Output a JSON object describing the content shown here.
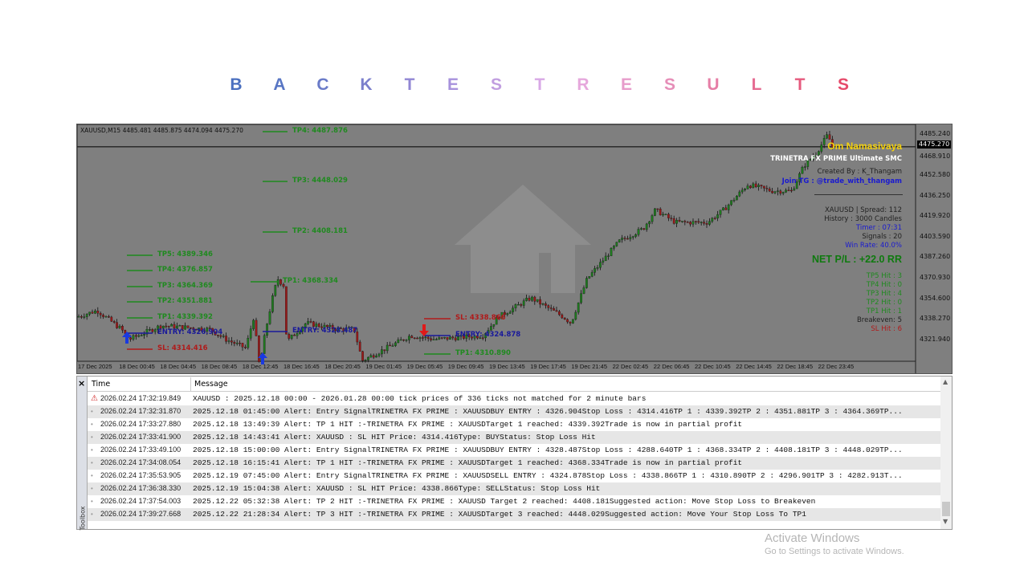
{
  "title_letters": [
    "B",
    "A",
    "C",
    "K",
    "T",
    "E",
    "S",
    "T",
    "R",
    "E",
    "S",
    "U",
    "L",
    "T",
    "S"
  ],
  "title_colors": [
    "#4a6fbf",
    "#5876c4",
    "#6a7bc8",
    "#7b7fcc",
    "#9187d4",
    "#a792dc",
    "#c19ee0",
    "#d8a8e6",
    "#e6a8dc",
    "#e79ccb",
    "#e68eb8",
    "#e67ea6",
    "#e66c92",
    "#e65a7e",
    "#e64a6a"
  ],
  "chart": {
    "header": "XAUUSD,M15  4485.481 4485.875 4474.094 4475.270",
    "current_price": "4475.270",
    "price_ticks": [
      "4485.240",
      "4468.910",
      "4452.580",
      "4436.250",
      "4419.920",
      "4403.590",
      "4387.260",
      "4370.930",
      "4354.600",
      "4338.270",
      "4321.940"
    ],
    "price_values": [
      4485.24,
      4468.91,
      4452.58,
      4436.25,
      4419.92,
      4403.59,
      4387.26,
      4370.93,
      4354.6,
      4338.27,
      4321.94
    ],
    "time_ticks": [
      "17 Dec 2025",
      "18 Dec 00:45",
      "18 Dec 04:45",
      "18 Dec 08:45",
      "18 Dec 12:45",
      "18 Dec 16:45",
      "18 Dec 20:45",
      "19 Dec 01:45",
      "19 Dec 05:45",
      "19 Dec 09:45",
      "19 Dec 13:45",
      "19 Dec 17:45",
      "19 Dec 21:45",
      "22 Dec 02:45",
      "22 Dec 06:45",
      "22 Dec 10:45",
      "22 Dec 14:45",
      "22 Dec 18:45",
      "22 Dec 23:45"
    ],
    "approx_close_path": [
      4340,
      4345,
      4330,
      4322,
      4333,
      4330,
      4322,
      4315,
      4340,
      4300,
      4330,
      4360,
      4370,
      4365,
      4320,
      4335,
      4330,
      4330,
      4305,
      4315,
      4325,
      4322,
      4325,
      4340,
      4355,
      4340,
      4335,
      4370,
      4400,
      4410,
      4425,
      4415,
      4415,
      4425,
      4445,
      4440,
      4440,
      4460,
      4470,
      4485,
      4475
    ],
    "levels": [
      {
        "label": "TP5: 4389.346",
        "type": "tp"
      },
      {
        "label": "TP4: 4376.857",
        "type": "tp"
      },
      {
        "label": "TP3: 4364.369",
        "type": "tp"
      },
      {
        "label": "TP2: 4351.881",
        "type": "tp"
      },
      {
        "label": "TP1: 4339.392",
        "type": "tp"
      },
      {
        "label": "ENTRY: 4326.904",
        "type": "entry"
      },
      {
        "label": "SL: 4314.416",
        "type": "sl"
      },
      {
        "label": "TP4: 4487.876",
        "type": "tp"
      },
      {
        "label": "TP3: 4448.029",
        "type": "tp"
      },
      {
        "label": "TP2: 4408.181",
        "type": "tp"
      },
      {
        "label": "TP1: 4368.334",
        "type": "tp"
      },
      {
        "label": "ENTRY: 4328.487",
        "type": "entry"
      },
      {
        "label": "SL: 4338.866",
        "type": "sl"
      },
      {
        "label": "ENTRY: 4324.878",
        "type": "entry"
      },
      {
        "label": "TP1: 4310.890",
        "type": "tp"
      }
    ],
    "info": {
      "greeting": "Om Namasivaya",
      "product": "TRINETRA FX PRIME Ultimate SMC",
      "creator": "Created By : K_Thangam",
      "telegram": "Join TG : @trade_with_thangam",
      "spread": "XAUUSD | Spread: 112",
      "history": "History : 3000 Candles",
      "timer": "Timer : 07:31",
      "signals": "Signals : 20",
      "win_rate": "Win Rate: 40.0%",
      "net_pl": "NET P/L : +22.0 RR",
      "tp5": "TP5 Hit : 3",
      "tp4": "TP4 Hit : 0",
      "tp3": "TP3 Hit : 4",
      "tp2": "TP2 Hit : 0",
      "tp1": "TP1 Hit : 1",
      "breakeven": "Breakeven: 5",
      "sl": "SL Hit  : 6"
    },
    "colors": {
      "bg": "#7f7f7f",
      "bull": "#1f7a1f",
      "bear": "#9a1a1a",
      "tp": "#1f8a1f",
      "entry": "#1a1a9a",
      "sl": "#b01a1a"
    }
  },
  "log": {
    "headers": {
      "time": "Time",
      "message": "Message"
    },
    "toolbox": "Toolbox",
    "rows": [
      {
        "icon": "warning",
        "time": "2026.02.24 17:32:19.849",
        "message": "XAUUSD : 2025.12.18 00:00 - 2026.01.28 00:00  tick prices of 336 ticks not matched for 2 minute bars"
      },
      {
        "icon": "dot",
        "time": "2026.02.24 17:32:31.870",
        "message": "2025.12.18 01:45:00   Alert: Entry SignalTRINETRA FX PRIME : XAUUSDBUY ENTRY : 4326.904Stop Loss  : 4314.416TP 1 : 4339.392TP 2 : 4351.881TP 3 : 4364.369TP..."
      },
      {
        "icon": "dot",
        "time": "2026.02.24 17:33:27.880",
        "message": "2025.12.18 13:49:39   Alert: TP 1 HIT :-TRINETRA FX PRIME : XAUUSDTarget 1 reached: 4339.392Trade is now in partial profit"
      },
      {
        "icon": "dot",
        "time": "2026.02.24 17:33:41.900",
        "message": "2025.12.18 14:43:41   Alert: XAUUSD : SL HIT Price: 4314.416Type: BUYStatus: Stop Loss Hit"
      },
      {
        "icon": "dot",
        "time": "2026.02.24 17:33:49.100",
        "message": "2025.12.18 15:00:00   Alert: Entry SignalTRINETRA FX PRIME : XAUUSDBUY ENTRY : 4328.487Stop Loss  : 4288.640TP 1 : 4368.334TP 2 : 4408.181TP 3 : 4448.029TP..."
      },
      {
        "icon": "dot",
        "time": "2026.02.24 17:34:08.054",
        "message": "2025.12.18 16:15:41   Alert: TP 1 HIT :-TRINETRA FX PRIME : XAUUSDTarget 1 reached: 4368.334Trade is now in partial profit"
      },
      {
        "icon": "dot",
        "time": "2026.02.24 17:35:53.905",
        "message": "2025.12.19 07:45:00   Alert: Entry SignalTRINETRA FX PRIME : XAUUSDSELL ENTRY : 4324.878Stop Loss  : 4338.866TP 1 : 4310.890TP 2 : 4296.901TP 3 : 4282.913T..."
      },
      {
        "icon": "dot",
        "time": "2026.02.24 17:36:38.330",
        "message": "2025.12.19 15:04:38   Alert: XAUUSD : SL HIT Price: 4338.866Type: SELLStatus: Stop Loss Hit"
      },
      {
        "icon": "dot",
        "time": "2026.02.24 17:37:54.003",
        "message": "2025.12.22 05:32:38   Alert: TP 2 HIT :-TRINETRA FX PRIME  : XAUUSD Target 2 reached: 4408.181Suggested action: Move Stop Loss to Breakeven"
      },
      {
        "icon": "dot",
        "time": "2026.02.24 17:39:27.668",
        "message": "2025.12.22 21:28:34   Alert: TP 3 HIT :-TRINETRA FX PRIME : XAUUSDTarget 3 reached: 4448.029Suggested action: Move Your Stop Loss To TP1"
      }
    ]
  },
  "os_watermark": {
    "line1": "Activate Windows",
    "line2": "Go to Settings to activate Windows."
  }
}
